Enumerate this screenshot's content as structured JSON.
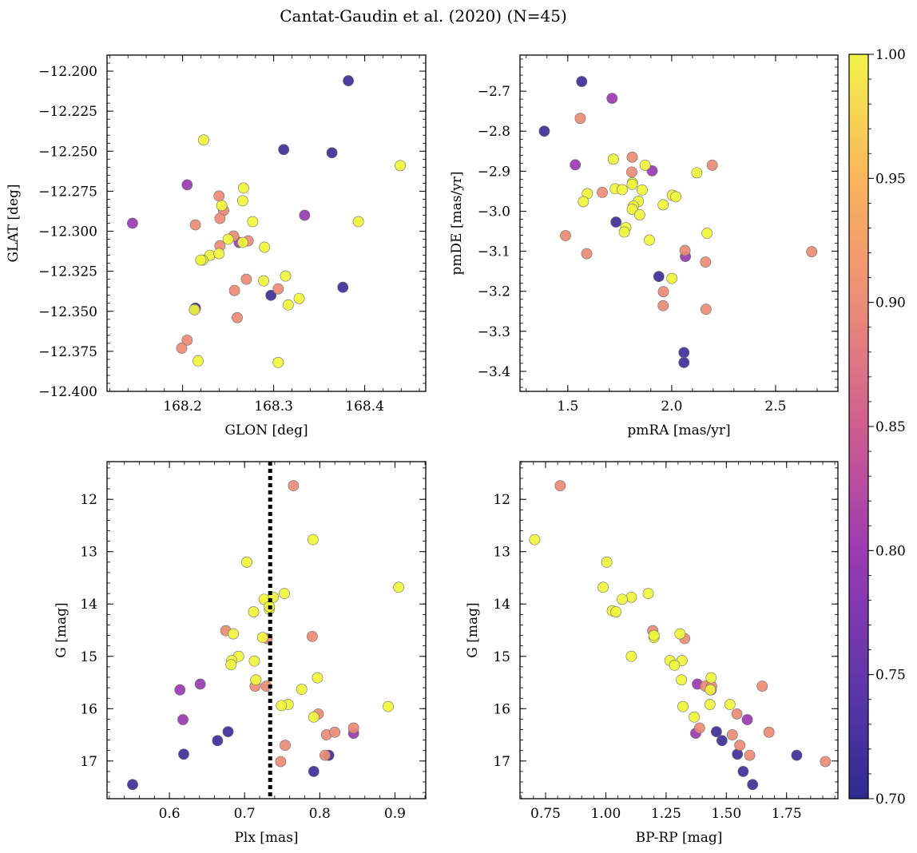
{
  "figure_title": "Cantat-Gaudin et al. (2020) (N=45)",
  "colorbar": {
    "min": 0.7,
    "max": 1.0,
    "ticks": [
      0.7,
      0.75,
      0.8,
      0.85,
      0.9,
      0.95,
      1.0
    ],
    "tick_labels": [
      "0.70",
      "0.75",
      "0.80",
      "0.85",
      "0.90",
      "0.95",
      "1.00"
    ],
    "colormap": "plasma"
  },
  "chart_data": [
    {
      "type": "scatter",
      "id": "glon-glat",
      "xlabel": "GLON [deg]",
      "ylabel": "GLAT [deg]",
      "xlim": [
        168.117,
        168.467
      ],
      "ylim": [
        -12.4,
        -12.19
      ],
      "y_inverted": false,
      "xticks": [
        168.2,
        168.3,
        168.4
      ],
      "xtick_labels": [
        "168.2",
        "168.3",
        "168.4"
      ],
      "yticks": [
        -12.2,
        -12.225,
        -12.25,
        -12.275,
        -12.3,
        -12.325,
        -12.35,
        -12.375,
        -12.4
      ],
      "ytick_labels": [
        "−12.200",
        "−12.225",
        "−12.250",
        "−12.275",
        "−12.300",
        "−12.325",
        "−12.350",
        "−12.375",
        "−12.400"
      ],
      "points": [
        {
          "x": 168.382,
          "y": -12.206,
          "c": 0.72
        },
        {
          "x": 168.311,
          "y": -12.249,
          "c": 0.72
        },
        {
          "x": 168.364,
          "y": -12.251,
          "c": 0.72
        },
        {
          "x": 168.376,
          "y": -12.335,
          "c": 0.72
        },
        {
          "x": 168.297,
          "y": -12.34,
          "c": 0.72
        },
        {
          "x": 168.214,
          "y": -12.348,
          "c": 0.72
        },
        {
          "x": 168.145,
          "y": -12.295,
          "c": 0.8
        },
        {
          "x": 168.205,
          "y": -12.271,
          "c": 0.8
        },
        {
          "x": 168.334,
          "y": -12.29,
          "c": 0.8
        },
        {
          "x": 168.262,
          "y": -12.307,
          "c": 0.8
        },
        {
          "x": 168.214,
          "y": -12.296,
          "c": 0.9
        },
        {
          "x": 168.24,
          "y": -12.278,
          "c": 0.9
        },
        {
          "x": 168.245,
          "y": -12.287,
          "c": 0.9
        },
        {
          "x": 168.241,
          "y": -12.292,
          "c": 0.9
        },
        {
          "x": 168.241,
          "y": -12.309,
          "c": 0.9
        },
        {
          "x": 168.256,
          "y": -12.303,
          "c": 0.9
        },
        {
          "x": 168.272,
          "y": -12.306,
          "c": 0.9
        },
        {
          "x": 168.27,
          "y": -12.33,
          "c": 0.9
        },
        {
          "x": 168.257,
          "y": -12.337,
          "c": 0.9
        },
        {
          "x": 168.26,
          "y": -12.354,
          "c": 0.9
        },
        {
          "x": 168.305,
          "y": -12.336,
          "c": 0.9
        },
        {
          "x": 168.205,
          "y": -12.368,
          "c": 0.9
        },
        {
          "x": 168.199,
          "y": -12.373,
          "c": 0.9
        },
        {
          "x": 168.223,
          "y": -12.243,
          "c": 1.0
        },
        {
          "x": 168.267,
          "y": -12.273,
          "c": 1.0
        },
        {
          "x": 168.266,
          "y": -12.281,
          "c": 1.0
        },
        {
          "x": 168.243,
          "y": -12.284,
          "c": 1.0
        },
        {
          "x": 168.277,
          "y": -12.294,
          "c": 1.0
        },
        {
          "x": 168.25,
          "y": -12.305,
          "c": 1.0
        },
        {
          "x": 168.266,
          "y": -12.307,
          "c": 1.0
        },
        {
          "x": 168.29,
          "y": -12.31,
          "c": 1.0
        },
        {
          "x": 168.23,
          "y": -12.315,
          "c": 1.0
        },
        {
          "x": 168.222,
          "y": -12.318,
          "c": 1.0
        },
        {
          "x": 168.22,
          "y": -12.318,
          "c": 1.0
        },
        {
          "x": 168.24,
          "y": -12.314,
          "c": 1.0
        },
        {
          "x": 168.289,
          "y": -12.331,
          "c": 1.0
        },
        {
          "x": 168.313,
          "y": -12.328,
          "c": 1.0
        },
        {
          "x": 168.316,
          "y": -12.346,
          "c": 1.0
        },
        {
          "x": 168.328,
          "y": -12.342,
          "c": 1.0
        },
        {
          "x": 168.213,
          "y": -12.349,
          "c": 1.0
        },
        {
          "x": 168.217,
          "y": -12.381,
          "c": 1.0
        },
        {
          "x": 168.305,
          "y": -12.382,
          "c": 1.0
        },
        {
          "x": 168.393,
          "y": -12.294,
          "c": 1.0
        },
        {
          "x": 168.439,
          "y": -12.259,
          "c": 1.0
        },
        {
          "x": 168.213,
          "y": -12.349,
          "c": 0.72
        }
      ]
    },
    {
      "type": "scatter",
      "id": "pmra-pmde",
      "xlabel": "pmRA [mas/yr]",
      "ylabel": "pmDE [mas/yr]",
      "xlim": [
        1.27,
        2.8
      ],
      "ylim": [
        -3.45,
        -2.61
      ],
      "y_inverted": false,
      "xticks": [
        1.5,
        2.0,
        2.5
      ],
      "xtick_labels": [
        "1.5",
        "2.0",
        "2.5"
      ],
      "yticks": [
        -2.7,
        -2.8,
        -2.9,
        -3.0,
        -3.1,
        -3.2,
        -3.3,
        -3.4
      ],
      "ytick_labels": [
        "−2.7",
        "−2.8",
        "−2.9",
        "−3.0",
        "−3.1",
        "−3.2",
        "−3.3",
        "−3.4"
      ],
      "points": [
        {
          "x": 1.567,
          "y": -2.676,
          "c": 0.72
        },
        {
          "x": 1.387,
          "y": -2.8,
          "c": 0.72
        },
        {
          "x": 1.732,
          "y": -3.027,
          "c": 0.72
        },
        {
          "x": 1.938,
          "y": -3.163,
          "c": 0.72
        },
        {
          "x": 2.059,
          "y": -3.353,
          "c": 0.72
        },
        {
          "x": 2.059,
          "y": -3.378,
          "c": 0.72
        },
        {
          "x": 1.713,
          "y": -2.718,
          "c": 0.8
        },
        {
          "x": 1.536,
          "y": -2.884,
          "c": 0.8
        },
        {
          "x": 1.906,
          "y": -2.899,
          "c": 0.8
        },
        {
          "x": 2.066,
          "y": -3.113,
          "c": 0.8
        },
        {
          "x": 1.56,
          "y": -2.768,
          "c": 0.9
        },
        {
          "x": 1.81,
          "y": -2.865,
          "c": 0.9
        },
        {
          "x": 1.808,
          "y": -2.902,
          "c": 0.9
        },
        {
          "x": 1.666,
          "y": -2.953,
          "c": 0.9
        },
        {
          "x": 2.195,
          "y": -2.885,
          "c": 0.9
        },
        {
          "x": 1.489,
          "y": -3.061,
          "c": 0.9
        },
        {
          "x": 1.591,
          "y": -3.106,
          "c": 0.9
        },
        {
          "x": 2.064,
          "y": -3.098,
          "c": 0.9
        },
        {
          "x": 2.163,
          "y": -3.127,
          "c": 0.9
        },
        {
          "x": 1.96,
          "y": -3.201,
          "c": 0.9
        },
        {
          "x": 1.959,
          "y": -3.236,
          "c": 0.9
        },
        {
          "x": 2.165,
          "y": -3.245,
          "c": 0.9
        },
        {
          "x": 2.674,
          "y": -3.101,
          "c": 0.9
        },
        {
          "x": 1.719,
          "y": -2.87,
          "c": 1.0
        },
        {
          "x": 1.872,
          "y": -2.885,
          "c": 1.0
        },
        {
          "x": 2.121,
          "y": -2.904,
          "c": 1.0
        },
        {
          "x": 1.811,
          "y": -2.929,
          "c": 1.0
        },
        {
          "x": 1.81,
          "y": -2.933,
          "c": 1.0
        },
        {
          "x": 1.728,
          "y": -2.944,
          "c": 1.0
        },
        {
          "x": 1.762,
          "y": -2.946,
          "c": 1.0
        },
        {
          "x": 1.858,
          "y": -2.947,
          "c": 1.0
        },
        {
          "x": 1.594,
          "y": -2.956,
          "c": 1.0
        },
        {
          "x": 2.003,
          "y": -2.96,
          "c": 1.0
        },
        {
          "x": 2.02,
          "y": -2.964,
          "c": 1.0
        },
        {
          "x": 1.575,
          "y": -2.976,
          "c": 1.0
        },
        {
          "x": 1.84,
          "y": -2.975,
          "c": 1.0
        },
        {
          "x": 1.959,
          "y": -2.984,
          "c": 1.0
        },
        {
          "x": 1.816,
          "y": -2.987,
          "c": 1.0
        },
        {
          "x": 1.81,
          "y": -2.995,
          "c": 1.0
        },
        {
          "x": 1.846,
          "y": -3.009,
          "c": 1.0
        },
        {
          "x": 1.779,
          "y": -3.041,
          "c": 1.0
        },
        {
          "x": 1.772,
          "y": -3.052,
          "c": 1.0
        },
        {
          "x": 2.17,
          "y": -3.055,
          "c": 1.0
        },
        {
          "x": 1.893,
          "y": -3.072,
          "c": 1.0
        },
        {
          "x": 2.001,
          "y": -3.168,
          "c": 1.0
        }
      ]
    },
    {
      "type": "scatter",
      "id": "plx-g",
      "xlabel": "Plx [mas]",
      "ylabel": "G [mag]",
      "xlim": [
        0.517,
        0.941
      ],
      "ylim": [
        11.28,
        17.72
      ],
      "y_inverted": true,
      "vline": {
        "x": 0.734,
        "style": "dotted",
        "color": "#000000"
      },
      "xticks": [
        0.6,
        0.7,
        0.8,
        0.9
      ],
      "xtick_labels": [
        "0.6",
        "0.7",
        "0.8",
        "0.9"
      ],
      "yticks": [
        12,
        13,
        14,
        15,
        16,
        17
      ],
      "ytick_labels": [
        "12",
        "13",
        "14",
        "15",
        "16",
        "17"
      ],
      "points": [
        {
          "x": 0.551,
          "y": 17.45,
          "c": 0.72
        },
        {
          "x": 0.619,
          "y": 16.87,
          "c": 0.72
        },
        {
          "x": 0.664,
          "y": 16.61,
          "c": 0.72
        },
        {
          "x": 0.678,
          "y": 16.44,
          "c": 0.72
        },
        {
          "x": 0.792,
          "y": 17.2,
          "c": 0.72
        },
        {
          "x": 0.812,
          "y": 16.89,
          "c": 0.72
        },
        {
          "x": 0.614,
          "y": 15.64,
          "c": 0.8
        },
        {
          "x": 0.618,
          "y": 16.21,
          "c": 0.8
        },
        {
          "x": 0.641,
          "y": 15.53,
          "c": 0.8
        },
        {
          "x": 0.845,
          "y": 16.47,
          "c": 0.8
        },
        {
          "x": 0.765,
          "y": 11.74,
          "c": 0.9
        },
        {
          "x": 0.675,
          "y": 14.51,
          "c": 0.9
        },
        {
          "x": 0.73,
          "y": 14.66,
          "c": 0.9
        },
        {
          "x": 0.79,
          "y": 14.62,
          "c": 0.9
        },
        {
          "x": 0.714,
          "y": 15.57,
          "c": 0.9
        },
        {
          "x": 0.729,
          "y": 15.57,
          "c": 0.9
        },
        {
          "x": 0.798,
          "y": 16.1,
          "c": 0.9
        },
        {
          "x": 0.809,
          "y": 16.5,
          "c": 0.9
        },
        {
          "x": 0.82,
          "y": 16.45,
          "c": 0.9
        },
        {
          "x": 0.845,
          "y": 16.37,
          "c": 0.9
        },
        {
          "x": 0.754,
          "y": 16.7,
          "c": 0.9
        },
        {
          "x": 0.807,
          "y": 16.89,
          "c": 0.9
        },
        {
          "x": 0.748,
          "y": 17.01,
          "c": 0.9
        },
        {
          "x": 0.791,
          "y": 12.77,
          "c": 1.0
        },
        {
          "x": 0.703,
          "y": 13.2,
          "c": 1.0
        },
        {
          "x": 0.905,
          "y": 13.68,
          "c": 1.0
        },
        {
          "x": 0.753,
          "y": 13.8,
          "c": 1.0
        },
        {
          "x": 0.738,
          "y": 13.87,
          "c": 1.0
        },
        {
          "x": 0.726,
          "y": 13.91,
          "c": 1.0
        },
        {
          "x": 0.733,
          "y": 14.1,
          "c": 1.0
        },
        {
          "x": 0.712,
          "y": 14.15,
          "c": 1.0
        },
        {
          "x": 0.685,
          "y": 14.57,
          "c": 1.0
        },
        {
          "x": 0.724,
          "y": 14.64,
          "c": 1.0
        },
        {
          "x": 0.692,
          "y": 15.0,
          "c": 1.0
        },
        {
          "x": 0.683,
          "y": 15.08,
          "c": 1.0
        },
        {
          "x": 0.713,
          "y": 15.09,
          "c": 1.0
        },
        {
          "x": 0.682,
          "y": 15.16,
          "c": 1.0
        },
        {
          "x": 0.797,
          "y": 15.41,
          "c": 1.0
        },
        {
          "x": 0.715,
          "y": 15.45,
          "c": 1.0
        },
        {
          "x": 0.776,
          "y": 15.63,
          "c": 1.0
        },
        {
          "x": 0.758,
          "y": 15.92,
          "c": 1.0
        },
        {
          "x": 0.749,
          "y": 15.94,
          "c": 1.0
        },
        {
          "x": 0.891,
          "y": 15.96,
          "c": 1.0
        },
        {
          "x": 0.792,
          "y": 16.16,
          "c": 1.0
        },
        {
          "x": 0.733,
          "y": 14.05,
          "c": 1.0
        }
      ]
    },
    {
      "type": "scatter",
      "id": "bprp-g",
      "xlabel": "BP-RP [mag]",
      "ylabel": "G [mag]",
      "xlim": [
        0.644,
        1.963
      ],
      "ylim": [
        11.28,
        17.72
      ],
      "y_inverted": true,
      "xticks": [
        0.75,
        1.0,
        1.25,
        1.5,
        1.75
      ],
      "xtick_labels": [
        "0.75",
        "1.00",
        "1.25",
        "1.50",
        "1.75"
      ],
      "yticks": [
        12,
        13,
        14,
        15,
        16,
        17
      ],
      "ytick_labels": [
        "12",
        "13",
        "14",
        "15",
        "16",
        "17"
      ],
      "points": [
        {
          "x": 1.459,
          "y": 16.44,
          "c": 0.72
        },
        {
          "x": 1.482,
          "y": 16.61,
          "c": 0.72
        },
        {
          "x": 1.546,
          "y": 16.87,
          "c": 0.72
        },
        {
          "x": 1.57,
          "y": 17.2,
          "c": 0.72
        },
        {
          "x": 1.609,
          "y": 17.45,
          "c": 0.72
        },
        {
          "x": 1.792,
          "y": 16.89,
          "c": 0.72
        },
        {
          "x": 1.38,
          "y": 15.53,
          "c": 0.8
        },
        {
          "x": 1.437,
          "y": 15.64,
          "c": 0.8
        },
        {
          "x": 1.587,
          "y": 16.21,
          "c": 0.8
        },
        {
          "x": 1.373,
          "y": 16.47,
          "c": 0.8
        },
        {
          "x": 0.811,
          "y": 11.74,
          "c": 0.9
        },
        {
          "x": 1.195,
          "y": 14.51,
          "c": 0.9
        },
        {
          "x": 1.327,
          "y": 14.66,
          "c": 0.9
        },
        {
          "x": 1.413,
          "y": 15.57,
          "c": 0.9
        },
        {
          "x": 1.439,
          "y": 15.57,
          "c": 0.9
        },
        {
          "x": 1.649,
          "y": 15.57,
          "c": 0.9
        },
        {
          "x": 1.544,
          "y": 16.1,
          "c": 0.9
        },
        {
          "x": 1.389,
          "y": 16.37,
          "c": 0.9
        },
        {
          "x": 1.677,
          "y": 16.45,
          "c": 0.9
        },
        {
          "x": 1.525,
          "y": 16.5,
          "c": 0.9
        },
        {
          "x": 1.556,
          "y": 16.7,
          "c": 0.9
        },
        {
          "x": 1.597,
          "y": 16.89,
          "c": 0.9
        },
        {
          "x": 1.911,
          "y": 17.01,
          "c": 0.9
        },
        {
          "x": 0.705,
          "y": 12.77,
          "c": 1.0
        },
        {
          "x": 1.004,
          "y": 13.2,
          "c": 1.0
        },
        {
          "x": 0.989,
          "y": 13.68,
          "c": 1.0
        },
        {
          "x": 1.176,
          "y": 13.8,
          "c": 1.0
        },
        {
          "x": 1.106,
          "y": 13.87,
          "c": 1.0
        },
        {
          "x": 1.068,
          "y": 13.91,
          "c": 1.0
        },
        {
          "x": 1.027,
          "y": 14.13,
          "c": 1.0
        },
        {
          "x": 1.042,
          "y": 14.15,
          "c": 1.0
        },
        {
          "x": 1.308,
          "y": 14.57,
          "c": 1.0
        },
        {
          "x": 1.2,
          "y": 14.64,
          "c": 1.0
        },
        {
          "x": 1.106,
          "y": 15.0,
          "c": 1.0
        },
        {
          "x": 1.266,
          "y": 15.08,
          "c": 1.0
        },
        {
          "x": 1.316,
          "y": 15.08,
          "c": 1.0
        },
        {
          "x": 1.285,
          "y": 15.17,
          "c": 1.0
        },
        {
          "x": 1.437,
          "y": 15.41,
          "c": 1.0
        },
        {
          "x": 1.314,
          "y": 15.45,
          "c": 1.0
        },
        {
          "x": 1.434,
          "y": 15.64,
          "c": 1.0
        },
        {
          "x": 1.432,
          "y": 15.92,
          "c": 1.0
        },
        {
          "x": 1.515,
          "y": 15.92,
          "c": 1.0
        },
        {
          "x": 1.32,
          "y": 15.96,
          "c": 1.0
        },
        {
          "x": 1.367,
          "y": 16.16,
          "c": 1.0
        },
        {
          "x": 1.2,
          "y": 14.6,
          "c": 1.0
        }
      ]
    }
  ]
}
